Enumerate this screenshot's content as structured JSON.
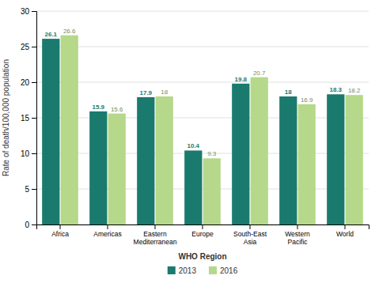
{
  "chart_data": {
    "type": "bar",
    "categories": [
      "Africa",
      "Americas",
      "Eastern\nMediterranean",
      "Europe",
      "South-East\nAsia",
      "Western\nPacific",
      "World"
    ],
    "series": [
      {
        "name": "2013",
        "color": "#1a7a6e",
        "values": [
          26.1,
          15.9,
          17.9,
          10.4,
          19.8,
          18.0,
          18.3
        ]
      },
      {
        "name": "2016",
        "color": "#b5d88a",
        "values": [
          26.6,
          15.6,
          18.0,
          9.3,
          20.7,
          16.9,
          18.2
        ]
      }
    ],
    "xlabel": "WHO Region",
    "ylabel": "Rate of death/100,000 population",
    "ylim": [
      0,
      30
    ],
    "yticks": [
      0,
      5,
      10,
      15,
      20,
      25,
      30
    ],
    "grid": true,
    "legend": "bottom",
    "data_labels": true
  }
}
